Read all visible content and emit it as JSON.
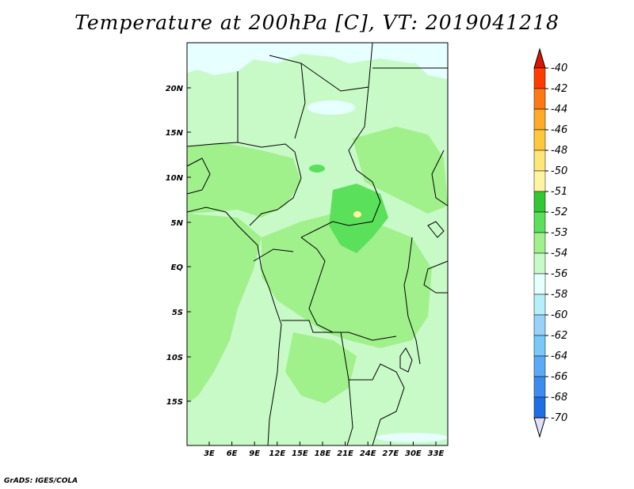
{
  "title": "Temperature at 200hPa [C], VT: 2019041218",
  "credit": "GrADS: IGES/COLA",
  "map": {
    "lat_labels": [
      "20N",
      "15N",
      "10N",
      "5N",
      "EQ",
      "5S",
      "10S",
      "15S"
    ],
    "lon_labels": [
      "3E",
      "6E",
      "9E",
      "12E",
      "15E",
      "18E",
      "21E",
      "24E",
      "27E",
      "30E",
      "33E"
    ]
  },
  "colorbar": {
    "levels": [
      "-40",
      "-42",
      "-44",
      "-46",
      "-48",
      "-50",
      "-51",
      "-52",
      "-53",
      "-54",
      "-56",
      "-58",
      "-60",
      "-62",
      "-64",
      "-66",
      "-68",
      "-70"
    ],
    "colors": [
      "#e6ffff",
      "#c8fac8",
      "#a0f08c",
      "#5ae05a",
      "#32c832",
      "#fff5a0",
      "#ffe678",
      "#ffc83c",
      "#ffaa28",
      "#ff7814",
      "#ff3c00",
      "#e61e00"
    ],
    "blue_colors": [
      "#0a0a78",
      "#1450c8",
      "#1e6ee6",
      "#3c8cf0",
      "#5aaaf5",
      "#78c8fa",
      "#96d2fa",
      "#b4f0fa"
    ],
    "top_color": "#dc1400",
    "bottom_color": "#e0e0f8"
  },
  "field_colors": {
    "c54": "#e6ffff",
    "c53": "#c8fac8",
    "c52": "#a0f08c",
    "c51": "#5ae05a",
    "c50": "#fff5a0"
  }
}
